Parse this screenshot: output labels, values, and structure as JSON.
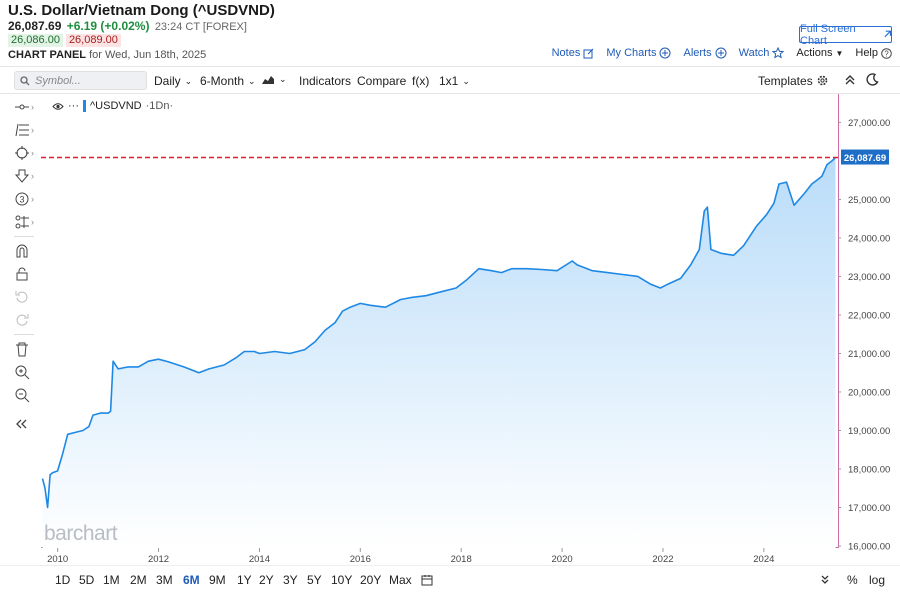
{
  "header": {
    "title": "U.S. Dollar/Vietnam Dong (^USDVND)",
    "last": "26,087.69",
    "change": "+6.19 (+0.02%)",
    "time": "23:24 CT [FOREX]",
    "bid": "26,086.00",
    "ask": "26,089.00",
    "panel_label": "CHART PANEL",
    "panel_date": "for Wed, Jun 18th, 2025"
  },
  "actions": {
    "fullscreen": "Full Screen Chart",
    "notes": "Notes",
    "my_charts": "My Charts",
    "alerts": "Alerts",
    "watch": "Watch",
    "actions": "Actions",
    "help": "Help"
  },
  "toolbar": {
    "symbol_placeholder": "Symbol...",
    "daily": "Daily",
    "range": "6-Month",
    "indicators": "Indicators",
    "compare": "Compare",
    "fx": "f(x)",
    "layout": "1x1",
    "templates": "Templates"
  },
  "legend": {
    "symbol": "^USDVND",
    "interval": "·1Dn·"
  },
  "watermark": "barchart",
  "periods": [
    "1D",
    "5D",
    "1M",
    "2M",
    "3M",
    "6M",
    "9M",
    "1Y",
    "2Y",
    "3Y",
    "5Y",
    "10Y",
    "20Y",
    "Max"
  ],
  "active_period": "6M",
  "bottom_right": {
    "percent": "%",
    "log": "log"
  },
  "colors": {
    "accent": "#1e88e5",
    "last_line": "#e01e2e",
    "positive": "#1e8e3e",
    "frame": "#d36aa8"
  },
  "chart_data": {
    "type": "area",
    "x_unit": "year",
    "xlim": [
      2009.67,
      2025.47
    ],
    "ylim": [
      16000,
      27400
    ],
    "x_ticks": [
      2010,
      2012,
      2014,
      2016,
      2018,
      2020,
      2022,
      2024
    ],
    "y_ticks": [
      16000,
      17000,
      18000,
      19000,
      20000,
      21000,
      22000,
      23000,
      24000,
      25000,
      26000,
      27000
    ],
    "y_tick_labels": [
      "16,000.00",
      "17,000.00",
      "18,000.00",
      "19,000.00",
      "20,000.00",
      "21,000.00",
      "22,000.00",
      "23,000.00",
      "24,000.00",
      "25,000.00",
      "26,000.00",
      "27,000.00"
    ],
    "last_value": 26087.69,
    "last_label": "26,087.69",
    "series": [
      {
        "values": [
          [
            2009.7,
            17750
          ],
          [
            2009.75,
            17500
          ],
          [
            2009.8,
            17000
          ],
          [
            2009.85,
            17850
          ],
          [
            2009.9,
            17900
          ],
          [
            2010.0,
            17950
          ],
          [
            2010.1,
            18400
          ],
          [
            2010.2,
            18900
          ],
          [
            2010.35,
            18950
          ],
          [
            2010.5,
            19000
          ],
          [
            2010.62,
            19100
          ],
          [
            2010.7,
            19400
          ],
          [
            2010.85,
            19450
          ],
          [
            2011.0,
            19450
          ],
          [
            2011.05,
            19500
          ],
          [
            2011.1,
            20800
          ],
          [
            2011.2,
            20600
          ],
          [
            2011.4,
            20650
          ],
          [
            2011.6,
            20650
          ],
          [
            2011.8,
            20800
          ],
          [
            2012.0,
            20850
          ],
          [
            2012.2,
            20780
          ],
          [
            2012.5,
            20650
          ],
          [
            2012.8,
            20500
          ],
          [
            2013.0,
            20600
          ],
          [
            2013.3,
            20700
          ],
          [
            2013.55,
            20900
          ],
          [
            2013.7,
            21050
          ],
          [
            2013.9,
            21050
          ],
          [
            2014.0,
            21000
          ],
          [
            2014.3,
            21050
          ],
          [
            2014.6,
            21000
          ],
          [
            2014.9,
            21100
          ],
          [
            2015.1,
            21300
          ],
          [
            2015.3,
            21600
          ],
          [
            2015.5,
            21800
          ],
          [
            2015.65,
            22100
          ],
          [
            2015.8,
            22200
          ],
          [
            2016.0,
            22300
          ],
          [
            2016.2,
            22250
          ],
          [
            2016.5,
            22200
          ],
          [
            2016.8,
            22400
          ],
          [
            2017.0,
            22450
          ],
          [
            2017.3,
            22500
          ],
          [
            2017.6,
            22600
          ],
          [
            2017.9,
            22700
          ],
          [
            2018.1,
            22900
          ],
          [
            2018.35,
            23200
          ],
          [
            2018.6,
            23150
          ],
          [
            2018.8,
            23100
          ],
          [
            2019.0,
            23200
          ],
          [
            2019.3,
            23200
          ],
          [
            2019.6,
            23180
          ],
          [
            2019.9,
            23150
          ],
          [
            2020.2,
            23400
          ],
          [
            2020.3,
            23300
          ],
          [
            2020.6,
            23150
          ],
          [
            2020.9,
            23100
          ],
          [
            2021.2,
            23050
          ],
          [
            2021.5,
            23000
          ],
          [
            2021.75,
            22800
          ],
          [
            2021.95,
            22700
          ],
          [
            2022.1,
            22800
          ],
          [
            2022.35,
            22950
          ],
          [
            2022.55,
            23300
          ],
          [
            2022.72,
            23700
          ],
          [
            2022.82,
            24700
          ],
          [
            2022.88,
            24800
          ],
          [
            2022.95,
            23700
          ],
          [
            2023.15,
            23600
          ],
          [
            2023.4,
            23550
          ],
          [
            2023.6,
            23800
          ],
          [
            2023.85,
            24300
          ],
          [
            2024.05,
            24600
          ],
          [
            2024.2,
            24900
          ],
          [
            2024.3,
            25400
          ],
          [
            2024.45,
            25450
          ],
          [
            2024.6,
            24850
          ],
          [
            2024.8,
            25150
          ],
          [
            2024.95,
            25400
          ],
          [
            2025.05,
            25500
          ],
          [
            2025.15,
            25600
          ],
          [
            2025.25,
            25900
          ],
          [
            2025.35,
            26000
          ],
          [
            2025.42,
            26087.69
          ]
        ]
      }
    ]
  }
}
